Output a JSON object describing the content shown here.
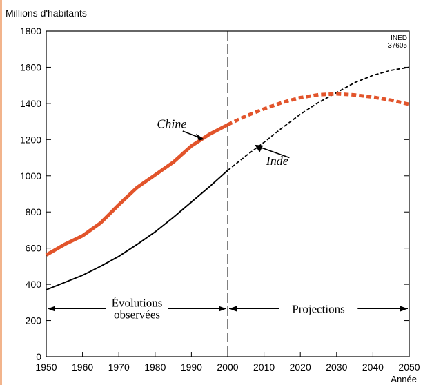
{
  "chart_data": {
    "type": "line",
    "ylabel": "Millions d'habitants",
    "xlabel": "Année",
    "xlim": [
      1950,
      2050
    ],
    "ylim": [
      0,
      1800
    ],
    "x_ticks": [
      1950,
      1960,
      1970,
      1980,
      1990,
      2000,
      2010,
      2020,
      2030,
      2040,
      2050
    ],
    "y_ticks": [
      0,
      200,
      400,
      600,
      800,
      1000,
      1200,
      1400,
      1600,
      1800
    ],
    "grid": false,
    "source_note": [
      "INED",
      "37605"
    ],
    "divider_year": 2000,
    "periods": {
      "observed_label": [
        "Évolutions",
        "observées"
      ],
      "projected_label": "Projections"
    },
    "colors": {
      "chine": "#e2542b",
      "inde": "#000000",
      "axis": "#000000"
    },
    "series": [
      {
        "name": "Chine",
        "observed": {
          "x": [
            1950,
            1955,
            1960,
            1965,
            1970,
            1975,
            1980,
            1985,
            1990,
            1995,
            2000
          ],
          "y": [
            562,
            620,
            668,
            740,
            840,
            935,
            1005,
            1075,
            1165,
            1230,
            1282
          ]
        },
        "projected": {
          "x": [
            2000,
            2005,
            2010,
            2015,
            2020,
            2025,
            2030,
            2035,
            2040,
            2045,
            2050
          ],
          "y": [
            1282,
            1330,
            1370,
            1405,
            1432,
            1448,
            1453,
            1447,
            1435,
            1418,
            1395
          ]
        }
      },
      {
        "name": "Inde",
        "observed": {
          "x": [
            1950,
            1955,
            1960,
            1965,
            1970,
            1975,
            1980,
            1985,
            1990,
            1995,
            2000
          ],
          "y": [
            370,
            410,
            450,
            500,
            555,
            620,
            690,
            770,
            855,
            940,
            1030
          ]
        },
        "projected": {
          "x": [
            2000,
            2005,
            2010,
            2015,
            2020,
            2025,
            2030,
            2035,
            2040,
            2045,
            2050
          ],
          "y": [
            1030,
            1110,
            1185,
            1265,
            1340,
            1405,
            1460,
            1515,
            1555,
            1583,
            1600
          ]
        }
      }
    ]
  }
}
